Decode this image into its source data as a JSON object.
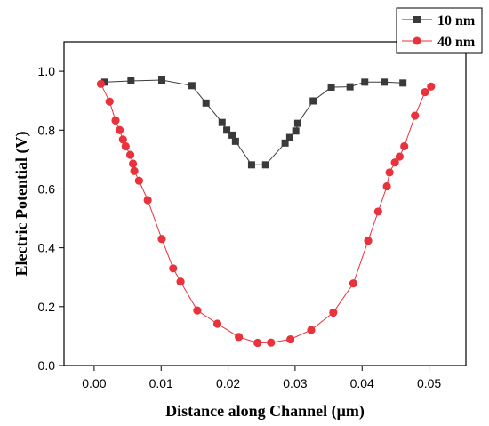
{
  "chart_data": {
    "type": "line",
    "title": "",
    "xlabel": "Distance along Channel (μm)",
    "ylabel": "Electric Potential (V)",
    "xlim": [
      -0.0045,
      0.0555
    ],
    "ylim": [
      0.0,
      1.1
    ],
    "xticks": [
      0.0,
      0.01,
      0.02,
      0.03,
      0.04,
      0.05
    ],
    "yticks": [
      0.0,
      0.2,
      0.4,
      0.6,
      0.8,
      1.0
    ],
    "xtick_labels": [
      "0.00",
      "0.01",
      "0.02",
      "0.03",
      "0.04",
      "0.05"
    ],
    "ytick_labels": [
      "0.0",
      "0.2",
      "0.4",
      "0.6",
      "0.8",
      "1.0"
    ],
    "grid": false,
    "legend_position": "top-right",
    "series": [
      {
        "name": "10 nm",
        "color": "#3a3a3a",
        "marker": "square",
        "x": [
          0.0016,
          0.0055,
          0.0101,
          0.0146,
          0.0167,
          0.0191,
          0.0198,
          0.0206,
          0.0211,
          0.0235,
          0.0256,
          0.0285,
          0.0292,
          0.0301,
          0.0304,
          0.0327,
          0.0354,
          0.0382,
          0.0404,
          0.0433,
          0.0461
        ],
        "y": [
          0.963,
          0.967,
          0.97,
          0.951,
          0.892,
          0.826,
          0.8,
          0.783,
          0.762,
          0.682,
          0.682,
          0.756,
          0.775,
          0.797,
          0.823,
          0.899,
          0.946,
          0.947,
          0.963,
          0.963,
          0.96
        ]
      },
      {
        "name": "40 nm",
        "color": "#e8323c",
        "marker": "circle",
        "x": [
          0.001,
          0.0023,
          0.0032,
          0.0038,
          0.0043,
          0.0047,
          0.0054,
          0.0058,
          0.006,
          0.0067,
          0.008,
          0.0101,
          0.0118,
          0.0129,
          0.0154,
          0.0184,
          0.0216,
          0.0244,
          0.0264,
          0.0293,
          0.0324,
          0.0357,
          0.0387,
          0.0409,
          0.0424,
          0.0437,
          0.0441,
          0.0449,
          0.0456,
          0.0463,
          0.0479,
          0.0494,
          0.0503
        ],
        "y": [
          0.957,
          0.897,
          0.833,
          0.8,
          0.768,
          0.745,
          0.716,
          0.686,
          0.661,
          0.628,
          0.562,
          0.43,
          0.33,
          0.285,
          0.187,
          0.142,
          0.097,
          0.077,
          0.078,
          0.089,
          0.121,
          0.18,
          0.279,
          0.424,
          0.523,
          0.609,
          0.656,
          0.69,
          0.71,
          0.745,
          0.849,
          0.929,
          0.948
        ]
      }
    ]
  }
}
